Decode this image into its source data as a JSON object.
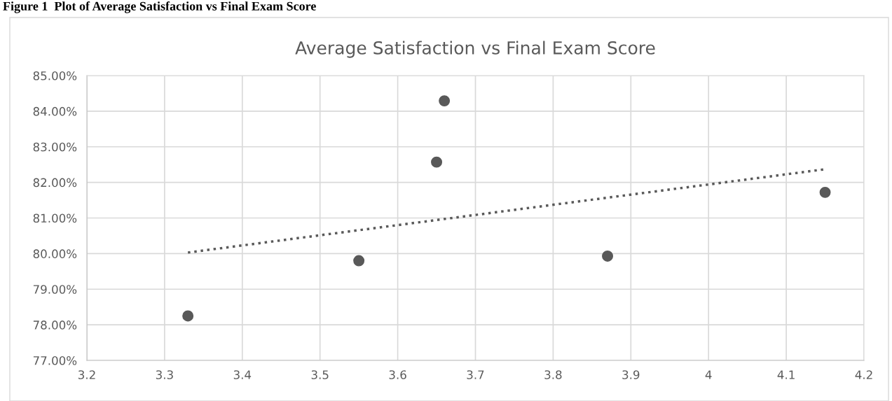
{
  "chart_data": {
    "type": "scatter",
    "title": "Average Satisfaction vs Final Exam Score",
    "annotations": [
      "Figure 1  Plot of Average Satisfaction vs Final Exam Score"
    ],
    "series": [
      {
        "color": "#595959",
        "x": [
          3.33,
          3.55,
          3.65,
          3.66,
          3.87,
          4.15
        ],
        "values": [
          78.25,
          79.8,
          82.57,
          84.29,
          79.93,
          81.72
        ],
        "marker": "circle"
      },
      {
        "type": "line",
        "color": "#595959",
        "x": [
          3.33,
          4.15
        ],
        "values": [
          80.03,
          82.37
        ],
        "line_style": "dotted",
        "marker": "none"
      }
    ],
    "xlim": [
      3.2,
      4.2
    ],
    "xticks": [
      3.2,
      3.3,
      3.4,
      3.5,
      3.6,
      3.7,
      3.8,
      3.9,
      4,
      4.1,
      4.2
    ],
    "ylim": [
      77,
      85
    ],
    "yticks": [
      {
        "value": 77,
        "label": "77.00%"
      },
      {
        "value": 78,
        "label": "78.00%"
      },
      {
        "value": 79,
        "label": "79.00%"
      },
      {
        "value": 80,
        "label": "80.00%"
      },
      {
        "value": 81,
        "label": "81.00%"
      },
      {
        "value": 82,
        "label": "82.00%"
      },
      {
        "value": 83,
        "label": "83.00%"
      },
      {
        "value": 84,
        "label": "84.00%"
      },
      {
        "value": 85,
        "label": "85.00%"
      }
    ],
    "grid": true,
    "legend": false
  }
}
